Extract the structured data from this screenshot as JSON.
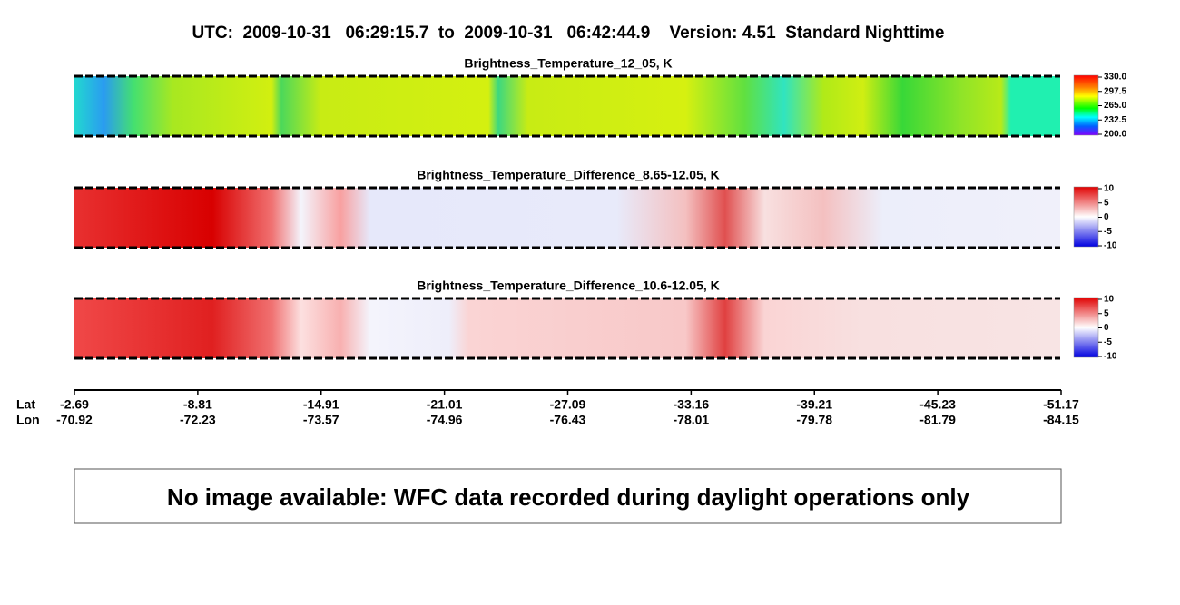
{
  "title": "UTC:  2009-10-31   06:29:15.7  to  2009-10-31   06:42:44.9    Version: 4.51  Standard Nighttime",
  "panels": [
    {
      "title": "Brightness_Temperature_12_05, K",
      "colorbar_labels": [
        "330.0",
        "297.5",
        "265.0",
        "232.5",
        "200.0"
      ]
    },
    {
      "title": "Brightness_Temperature_Difference_8.65-12.05, K",
      "colorbar_labels": [
        "10",
        "5",
        "0",
        "-5",
        "-10"
      ]
    },
    {
      "title": "Brightness_Temperature_Difference_10.6-12.05, K",
      "colorbar_labels": [
        "10",
        "5",
        "0",
        "-5",
        "-10"
      ]
    }
  ],
  "axis": {
    "lat_label": "Lat",
    "lon_label": "Lon",
    "lat": [
      "-2.69",
      "-8.81",
      "-14.91",
      "-21.01",
      "-27.09",
      "-33.16",
      "-39.21",
      "-45.23",
      "-51.17"
    ],
    "lon": [
      "-70.92",
      "-72.23",
      "-73.57",
      "-74.96",
      "-76.43",
      "-78.01",
      "-79.78",
      "-81.79",
      "-84.15"
    ]
  },
  "message": "No image available: WFC data recorded during daylight operations only"
}
